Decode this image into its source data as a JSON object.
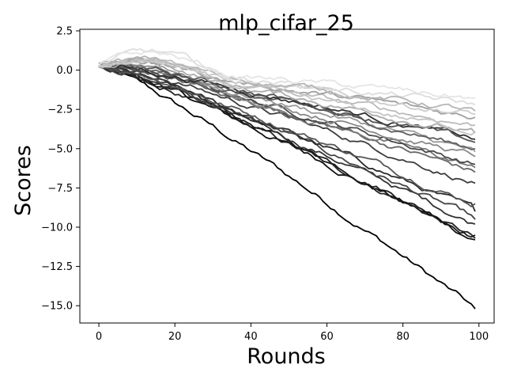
{
  "chart_data": {
    "type": "line",
    "title": "mlp_cifar_25",
    "xlabel": "Rounds",
    "ylabel": "Scores",
    "xlim": [
      -5,
      104
    ],
    "ylim": [
      -16.1,
      2.6
    ],
    "xticks": [
      0,
      20,
      40,
      60,
      80,
      100
    ],
    "yticks": [
      2.5,
      0.0,
      -2.5,
      -5.0,
      -7.5,
      -10.0,
      -12.5,
      -15.0
    ],
    "ytick_labels": [
      "2.5",
      "0.0",
      "−2.5",
      "−5.0",
      "−7.5",
      "−10.0",
      "−12.5",
      "−15.0"
    ],
    "grid": false,
    "legend": "none",
    "x_range": [
      0,
      99
    ],
    "series_note_omitted": true,
    "series": [
      {
        "color": "#000000",
        "start": 0.3,
        "end": -15.2,
        "peak": 0.3
      },
      {
        "color": "#111111",
        "start": 0.3,
        "end": -10.8,
        "peak": 0.4
      },
      {
        "color": "#222222",
        "start": 0.2,
        "end": -10.7,
        "peak": 0.3
      },
      {
        "color": "#1a1a1a",
        "start": 0.4,
        "end": -10.5,
        "peak": 0.4
      },
      {
        "color": "#333333",
        "start": 0.2,
        "end": -9.8,
        "peak": 0.4
      },
      {
        "color": "#444444",
        "start": 0.3,
        "end": -9.5,
        "peak": 0.5
      },
      {
        "color": "#2b2b2b",
        "start": 0.2,
        "end": -9.0,
        "peak": 0.3
      },
      {
        "color": "#555555",
        "start": 0.3,
        "end": -8.5,
        "peak": 0.6
      },
      {
        "color": "#3c3c3c",
        "start": 0.4,
        "end": -7.2,
        "peak": 0.5
      },
      {
        "color": "#666666",
        "start": 0.3,
        "end": -6.5,
        "peak": 0.5
      },
      {
        "color": "#777777",
        "start": 0.2,
        "end": -6.2,
        "peak": 0.7
      },
      {
        "color": "#4a4a4a",
        "start": 0.3,
        "end": -6.0,
        "peak": 0.5
      },
      {
        "color": "#888888",
        "start": 0.2,
        "end": -5.5,
        "peak": 0.8
      },
      {
        "color": "#999999",
        "start": 0.3,
        "end": -5.2,
        "peak": 0.9
      },
      {
        "color": "#5e5e5e",
        "start": 0.2,
        "end": -5.0,
        "peak": 0.5
      },
      {
        "color": "#2f2f2f",
        "start": 0.3,
        "end": -4.4,
        "peak": 0.4
      },
      {
        "color": "#505050",
        "start": 0.4,
        "end": -4.6,
        "peak": 0.5
      },
      {
        "color": "#aaaaaa",
        "start": 0.3,
        "end": -4.0,
        "peak": 1.0
      },
      {
        "color": "#bbbbbb",
        "start": 0.2,
        "end": -3.5,
        "peak": 1.1
      },
      {
        "color": "#a0a0a0",
        "start": 0.3,
        "end": -3.0,
        "peak": 0.9
      },
      {
        "color": "#cccccc",
        "start": 0.2,
        "end": -2.8,
        "peak": 1.3
      },
      {
        "color": "#dddddd",
        "start": 0.3,
        "end": -2.2,
        "peak": 1.6
      },
      {
        "color": "#b5b5b5",
        "start": 0.4,
        "end": -2.6,
        "peak": 1.0
      },
      {
        "color": "#e5e5e5",
        "start": 0.3,
        "end": -1.8,
        "peak": 1.5
      },
      {
        "color": "#c4c4c4",
        "start": 0.2,
        "end": -3.9,
        "peak": 1.1
      }
    ]
  }
}
